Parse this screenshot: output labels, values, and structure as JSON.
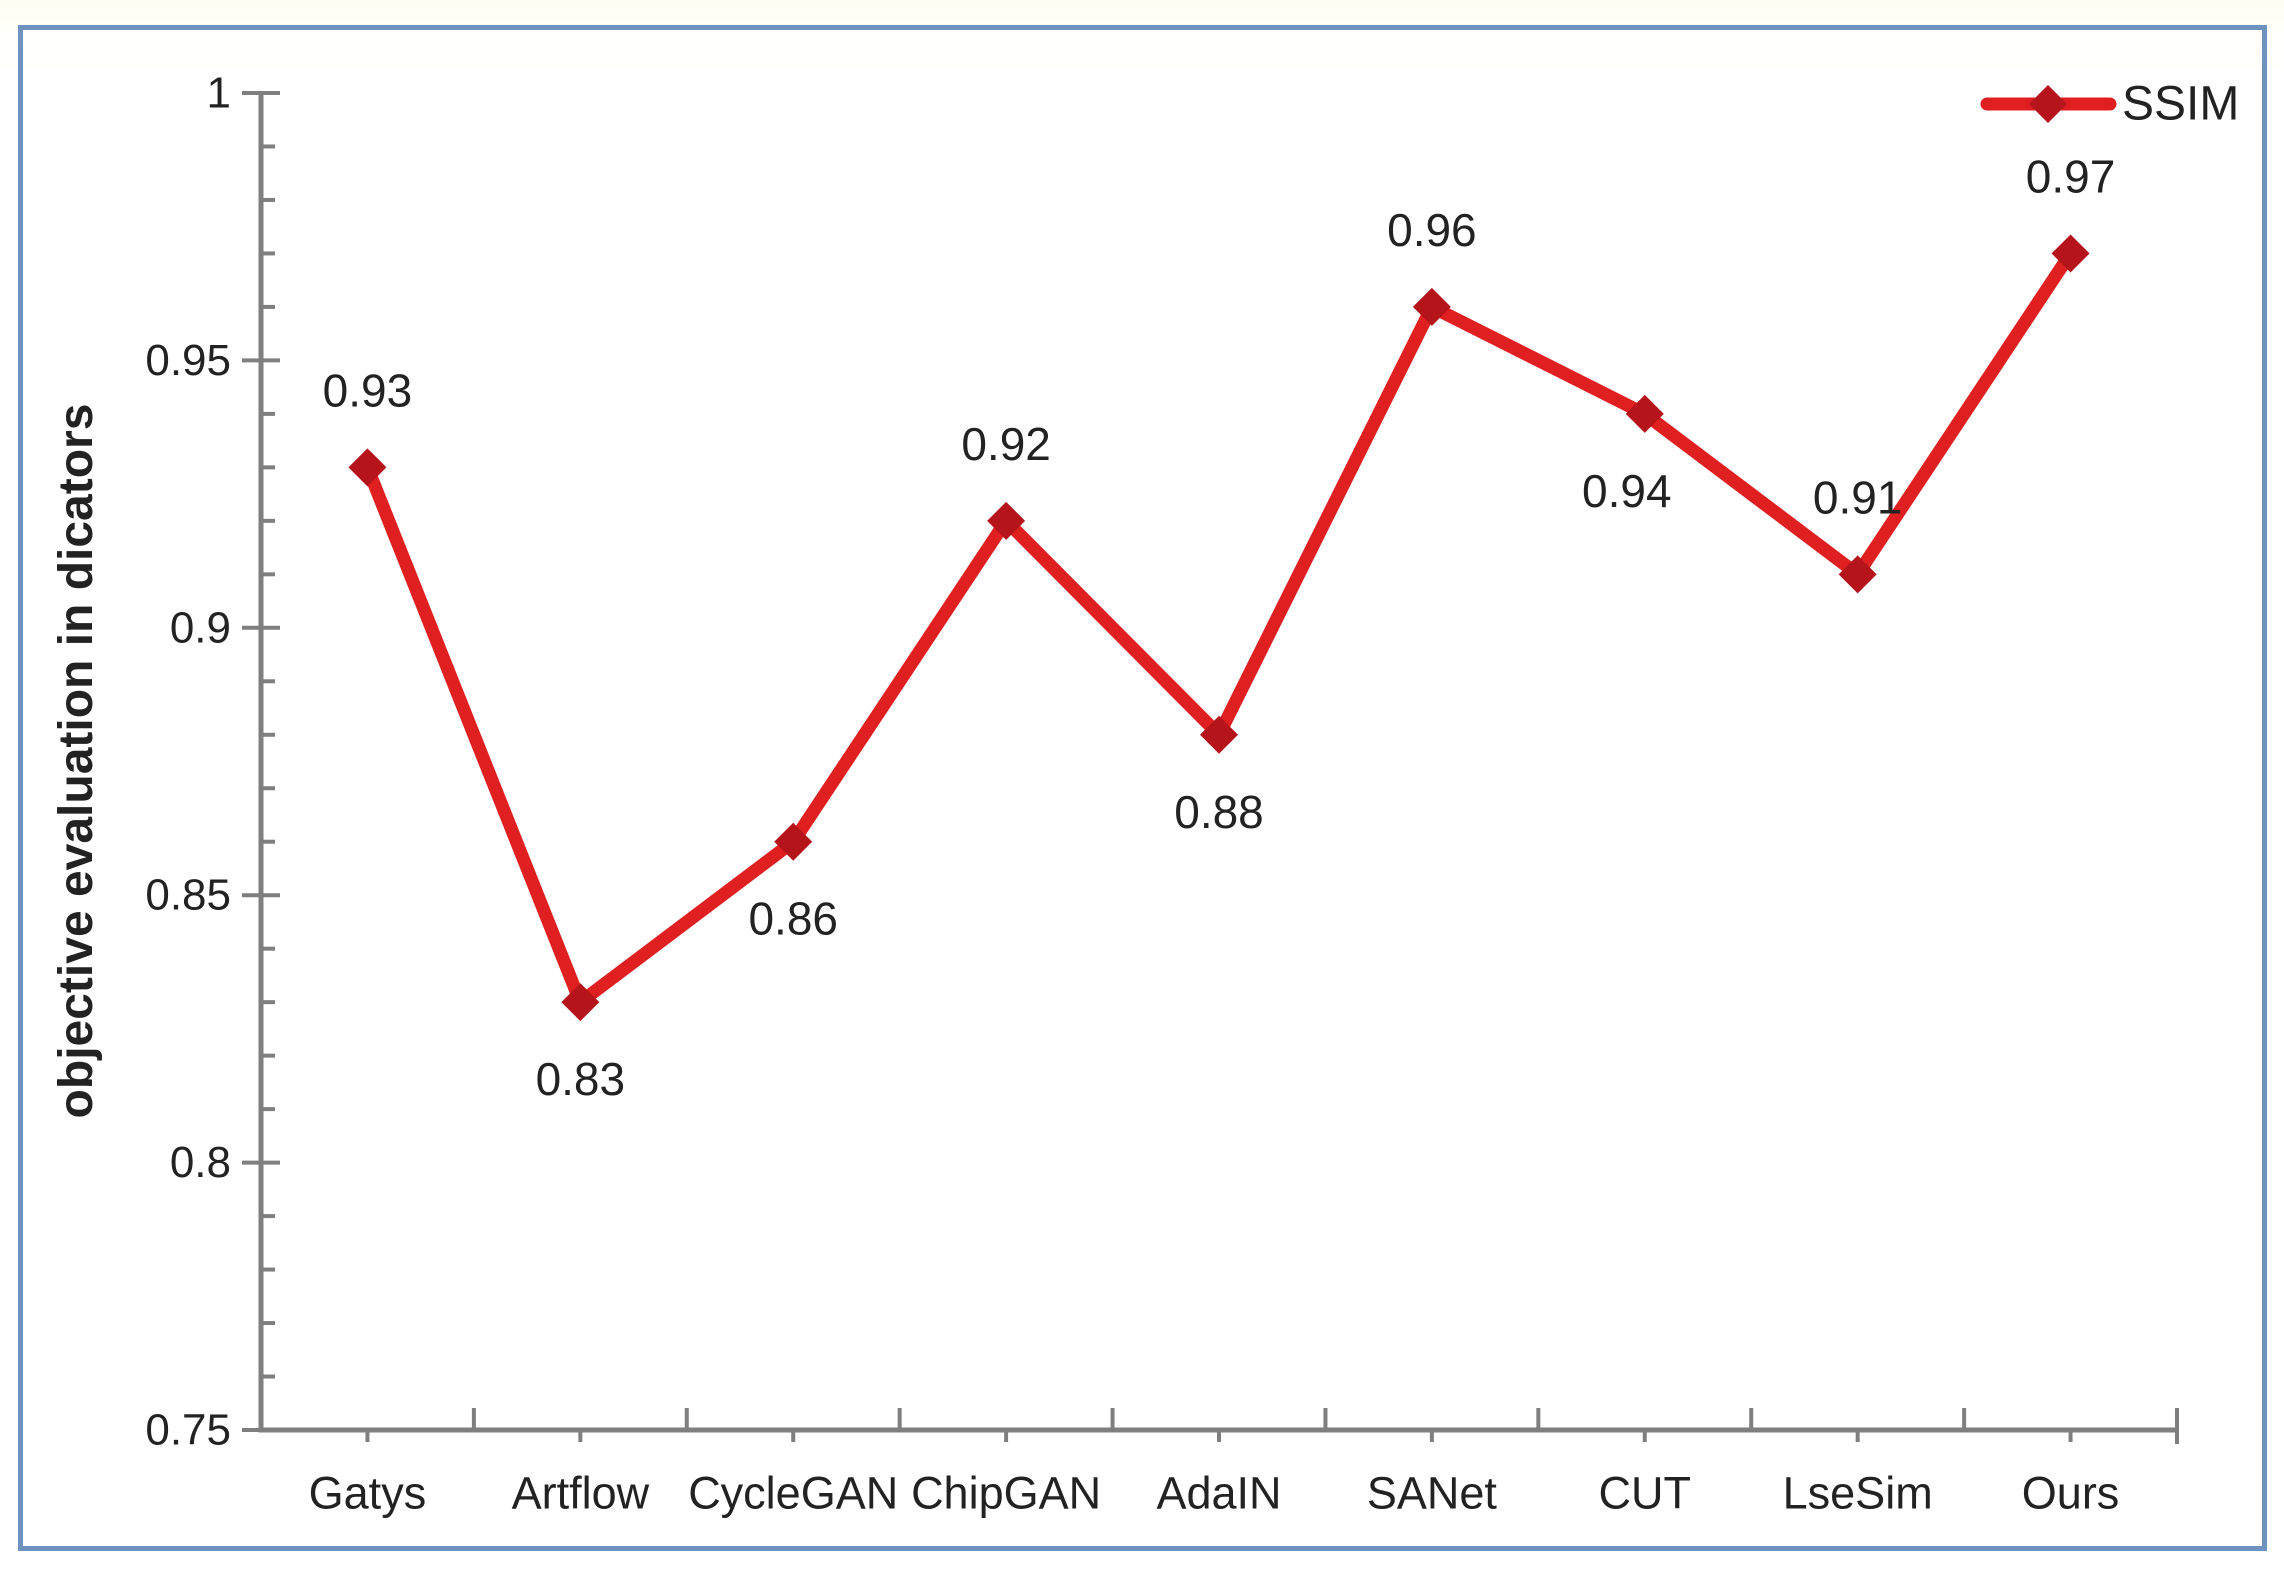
{
  "chart_data": {
    "type": "line",
    "title": "",
    "xlabel": "",
    "ylabel": "objective evaluation in dicators",
    "categories": [
      "Gatys",
      "Artflow",
      "CycleGAN",
      "ChipGAN",
      "AdaIN",
      "SANet",
      "CUT",
      "LseSim",
      "Ours"
    ],
    "series": [
      {
        "name": "SSIM",
        "values": [
          0.93,
          0.83,
          0.86,
          0.92,
          0.88,
          0.96,
          0.94,
          0.91,
          0.97
        ]
      }
    ],
    "data_labels": [
      "0.93",
      "0.83",
      "0.86",
      "0.92",
      "0.88",
      "0.96",
      "0.94",
      "0.91",
      "0.97"
    ],
    "label_placement": [
      "above",
      "below",
      "below",
      "above",
      "below",
      "above",
      "below",
      "above",
      "above"
    ],
    "label_dx": [
      0,
      0,
      0,
      0,
      0,
      0,
      -18,
      0,
      0
    ],
    "ylim": [
      0.75,
      1
    ],
    "y_major_step": 0.05,
    "y_minor_step": 0.01,
    "y_tick_labels": [
      "1",
      "0.95",
      "0.9",
      "0.85",
      "0.8",
      "0.75"
    ],
    "grid": false,
    "legend": {
      "position": "top-right",
      "entries": [
        {
          "label": "SSIM",
          "marker": "diamond-icon"
        }
      ]
    }
  },
  "colors": {
    "series_line": "#e02020",
    "marker_fill": "#b5141a",
    "axis": "#7f7f7f",
    "text": "#222222",
    "frame_border": "#6e93be",
    "background": "#ffffff"
  }
}
